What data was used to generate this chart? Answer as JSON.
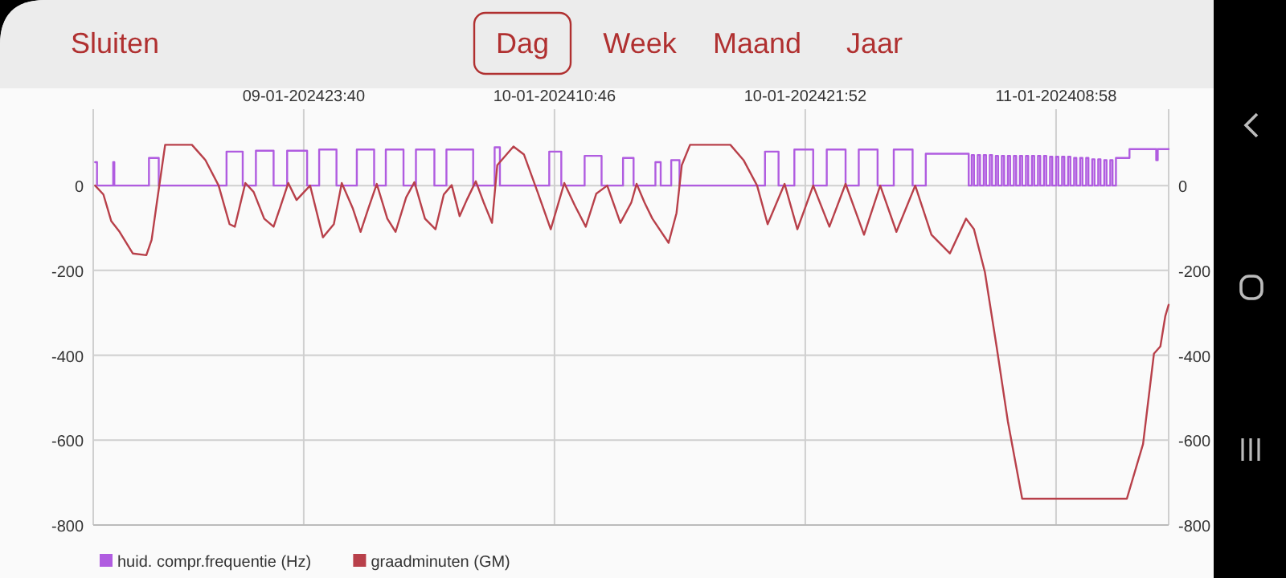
{
  "chart_data": {
    "type": "line",
    "annotations": [
      "Sluiten",
      "Dag",
      "Week",
      "Maand",
      "Jaar"
    ],
    "xlim": [
      "2024-01-09T14:21",
      "2024-01-11T13:57"
    ],
    "xticks": [
      {
        "value": "2024-01-09T23:40",
        "label": "09-01-202423:40"
      },
      {
        "value": "2024-01-10T10:46",
        "label": "10-01-202410:46"
      },
      {
        "value": "2024-01-10T21:52",
        "label": "10-01-202421:52"
      },
      {
        "value": "2024-01-11T08:58",
        "label": "11-01-202408:58"
      }
    ],
    "ylim": [
      -800,
      180
    ],
    "yticks": [
      -800,
      -600,
      -400,
      -200,
      0
    ],
    "y2lim": [
      -800,
      180
    ],
    "y2ticks": [
      -800,
      -600,
      -400,
      -200,
      0
    ],
    "grid": true,
    "legend": "bottom left",
    "series": [
      {
        "name": "huid. compr.frequentie (Hz)",
        "type": "step",
        "color": "#b05ce0",
        "x": [
          "2024-01-09T14:26",
          "2024-01-09T14:31",
          "2024-01-09T15:14",
          "2024-01-09T15:17",
          "2024-01-09T16:49",
          "2024-01-09T17:15",
          "2024-01-09T20:15",
          "2024-01-09T20:58",
          "2024-01-09T21:33",
          "2024-01-09T22:20",
          "2024-01-09T22:56",
          "2024-01-09T23:49",
          "2024-01-10T00:21",
          "2024-01-10T01:07",
          "2024-01-10T02:01",
          "2024-01-10T02:47",
          "2024-01-10T03:18",
          "2024-01-10T04:05",
          "2024-01-10T04:38",
          "2024-01-10T05:27",
          "2024-01-10T05:59",
          "2024-01-10T07:10",
          "2024-01-10T08:07",
          "2024-01-10T08:21",
          "2024-01-10T10:32",
          "2024-01-10T11:04",
          "2024-01-10T12:06",
          "2024-01-10T12:51",
          "2024-01-10T13:48",
          "2024-01-10T14:16",
          "2024-01-10T15:14",
          "2024-01-10T15:28",
          "2024-01-10T15:56",
          "2024-01-10T16:18",
          "2024-01-10T20:05",
          "2024-01-10T20:41",
          "2024-01-10T21:23",
          "2024-01-10T22:13",
          "2024-01-10T22:49",
          "2024-01-10T23:39",
          "2024-01-11T00:14",
          "2024-01-11T01:04",
          "2024-01-11T01:47",
          "2024-01-11T02:37",
          "2024-01-11T03:12",
          "2024-01-11T05:06",
          "2024-01-11T05:14",
          "2024-01-11T05:20",
          "2024-01-11T05:30",
          "2024-01-11T05:36",
          "2024-01-11T05:46",
          "2024-01-11T05:52",
          "2024-01-11T06:02",
          "2024-01-11T06:08",
          "2024-01-11T06:18",
          "2024-01-11T06:24",
          "2024-01-11T06:34",
          "2024-01-11T06:40",
          "2024-01-11T06:50",
          "2024-01-11T06:56",
          "2024-01-11T07:06",
          "2024-01-11T07:12",
          "2024-01-11T07:22",
          "2024-01-11T07:28",
          "2024-01-11T07:38",
          "2024-01-11T07:44",
          "2024-01-11T07:54",
          "2024-01-11T08:00",
          "2024-01-11T08:10",
          "2024-01-11T08:16",
          "2024-01-11T08:26",
          "2024-01-11T08:32",
          "2024-01-11T08:42",
          "2024-01-11T08:48",
          "2024-01-11T08:58",
          "2024-01-11T09:04",
          "2024-01-11T09:14",
          "2024-01-11T09:20",
          "2024-01-11T09:30",
          "2024-01-11T09:36",
          "2024-01-11T09:46",
          "2024-01-11T09:52",
          "2024-01-11T10:02",
          "2024-01-11T10:08",
          "2024-01-11T10:18",
          "2024-01-11T10:24",
          "2024-01-11T10:34",
          "2024-01-11T10:40",
          "2024-01-11T10:50",
          "2024-01-11T10:56",
          "2024-01-11T11:06",
          "2024-01-11T11:12",
          "2024-01-11T11:22",
          "2024-01-11T11:28",
          "2024-01-11T11:37",
          "2024-01-11T12:13",
          "2024-01-11T13:24",
          "2024-01-11T13:28",
          "2024-01-11T13:57"
        ],
        "values": [
          55,
          0,
          55,
          0,
          65,
          0,
          80,
          0,
          82,
          0,
          82,
          0,
          85,
          0,
          85,
          0,
          85,
          0,
          85,
          0,
          85,
          0,
          90,
          0,
          80,
          0,
          70,
          0,
          65,
          0,
          55,
          0,
          60,
          0,
          80,
          0,
          85,
          0,
          85,
          0,
          85,
          0,
          85,
          0,
          75,
          0,
          72,
          0,
          72,
          0,
          72,
          0,
          72,
          0,
          70,
          0,
          70,
          0,
          70,
          0,
          70,
          0,
          70,
          0,
          70,
          0,
          70,
          0,
          70,
          0,
          70,
          0,
          68,
          0,
          68,
          0,
          68,
          0,
          68,
          0,
          65,
          0,
          65,
          0,
          65,
          0,
          62,
          0,
          62,
          0,
          60,
          0,
          60,
          0,
          65,
          86,
          60,
          86,
          86
        ]
      },
      {
        "name": "graadminuten (GM)",
        "color": "#b8404a",
        "x": [
          "2024-01-09T14:26",
          "2024-01-09T14:48",
          "2024-01-09T15:09",
          "2024-01-09T15:31",
          "2024-01-09T16:06",
          "2024-01-09T16:42",
          "2024-01-09T16:56",
          "2024-01-09T17:10",
          "2024-01-09T17:32",
          "2024-01-09T18:43",
          "2024-01-09T19:19",
          "2024-01-09T19:54",
          "2024-01-09T20:23",
          "2024-01-09T20:37",
          "2024-01-09T21:05",
          "2024-01-09T21:27",
          "2024-01-09T21:55",
          "2024-01-09T22:20",
          "2024-01-09T22:38",
          "2024-01-09T22:59",
          "2024-01-09T23:21",
          "2024-01-09T23:57",
          "2024-01-10T00:31",
          "2024-01-10T01:00",
          "2024-01-10T01:21",
          "2024-01-10T01:50",
          "2024-01-10T02:11",
          "2024-01-10T02:32",
          "2024-01-10T02:54",
          "2024-01-10T03:22",
          "2024-01-10T03:44",
          "2024-01-10T04:12",
          "2024-01-10T04:34",
          "2024-01-10T05:02",
          "2024-01-10T05:30",
          "2024-01-10T05:52",
          "2024-01-10T06:13",
          "2024-01-10T06:34",
          "2024-01-10T06:53",
          "2024-01-10T07:17",
          "2024-01-10T07:38",
          "2024-01-10T08:00",
          "2024-01-10T08:14",
          "2024-01-10T08:57",
          "2024-01-10T09:25",
          "2024-01-10T10:01",
          "2024-01-10T10:36",
          "2024-01-10T11:12",
          "2024-01-10T11:40",
          "2024-01-10T12:09",
          "2024-01-10T12:37",
          "2024-01-10T13:06",
          "2024-01-10T13:41",
          "2024-01-10T14:10",
          "2024-01-10T14:24",
          "2024-01-10T14:45",
          "2024-01-10T15:06",
          "2024-01-10T15:49",
          "2024-01-10T16:10",
          "2024-01-10T16:24",
          "2024-01-10T16:46",
          "2024-01-10T18:33",
          "2024-01-10T19:08",
          "2024-01-10T19:44",
          "2024-01-10T20:12",
          "2024-01-10T20:57",
          "2024-01-10T21:31",
          "2024-01-10T22:13",
          "2024-01-10T22:56",
          "2024-01-10T23:39",
          "2024-01-11T00:28",
          "2024-01-11T01:11",
          "2024-01-11T01:54",
          "2024-01-11T02:44",
          "2024-01-11T03:27",
          "2024-01-11T04:16",
          "2024-01-11T04:59",
          "2024-01-11T05:20",
          "2024-01-11T05:49",
          "2024-01-11T06:20",
          "2024-01-11T06:50",
          "2024-01-11T07:28",
          "2024-01-11T12:06",
          "2024-01-11T12:49",
          "2024-01-11T13:18",
          "2024-01-11T13:35",
          "2024-01-11T13:48",
          "2024-01-11T13:57"
        ],
        "values": [
          0,
          -21,
          -84,
          -109,
          -160,
          -164,
          -128,
          -40,
          96,
          96,
          60,
          0,
          -91,
          -97,
          6,
          -15,
          -78,
          -97,
          -50,
          6,
          -34,
          0,
          -122,
          -91,
          6,
          -53,
          -109,
          -53,
          4,
          -78,
          -109,
          -28,
          8,
          -78,
          -103,
          -21,
          1,
          -72,
          -34,
          10,
          -40,
          -88,
          48,
          92,
          73,
          -15,
          -103,
          6,
          -47,
          -97,
          -19,
          0,
          -88,
          -40,
          4,
          -40,
          -78,
          -135,
          -65,
          48,
          96,
          96,
          60,
          0,
          -91,
          4,
          -103,
          0,
          -97,
          4,
          -116,
          0,
          -109,
          0,
          -116,
          -160,
          -78,
          -103,
          -204,
          -379,
          -556,
          -738,
          -738,
          -609,
          -396,
          -379,
          -308,
          -281
        ]
      }
    ]
  }
}
